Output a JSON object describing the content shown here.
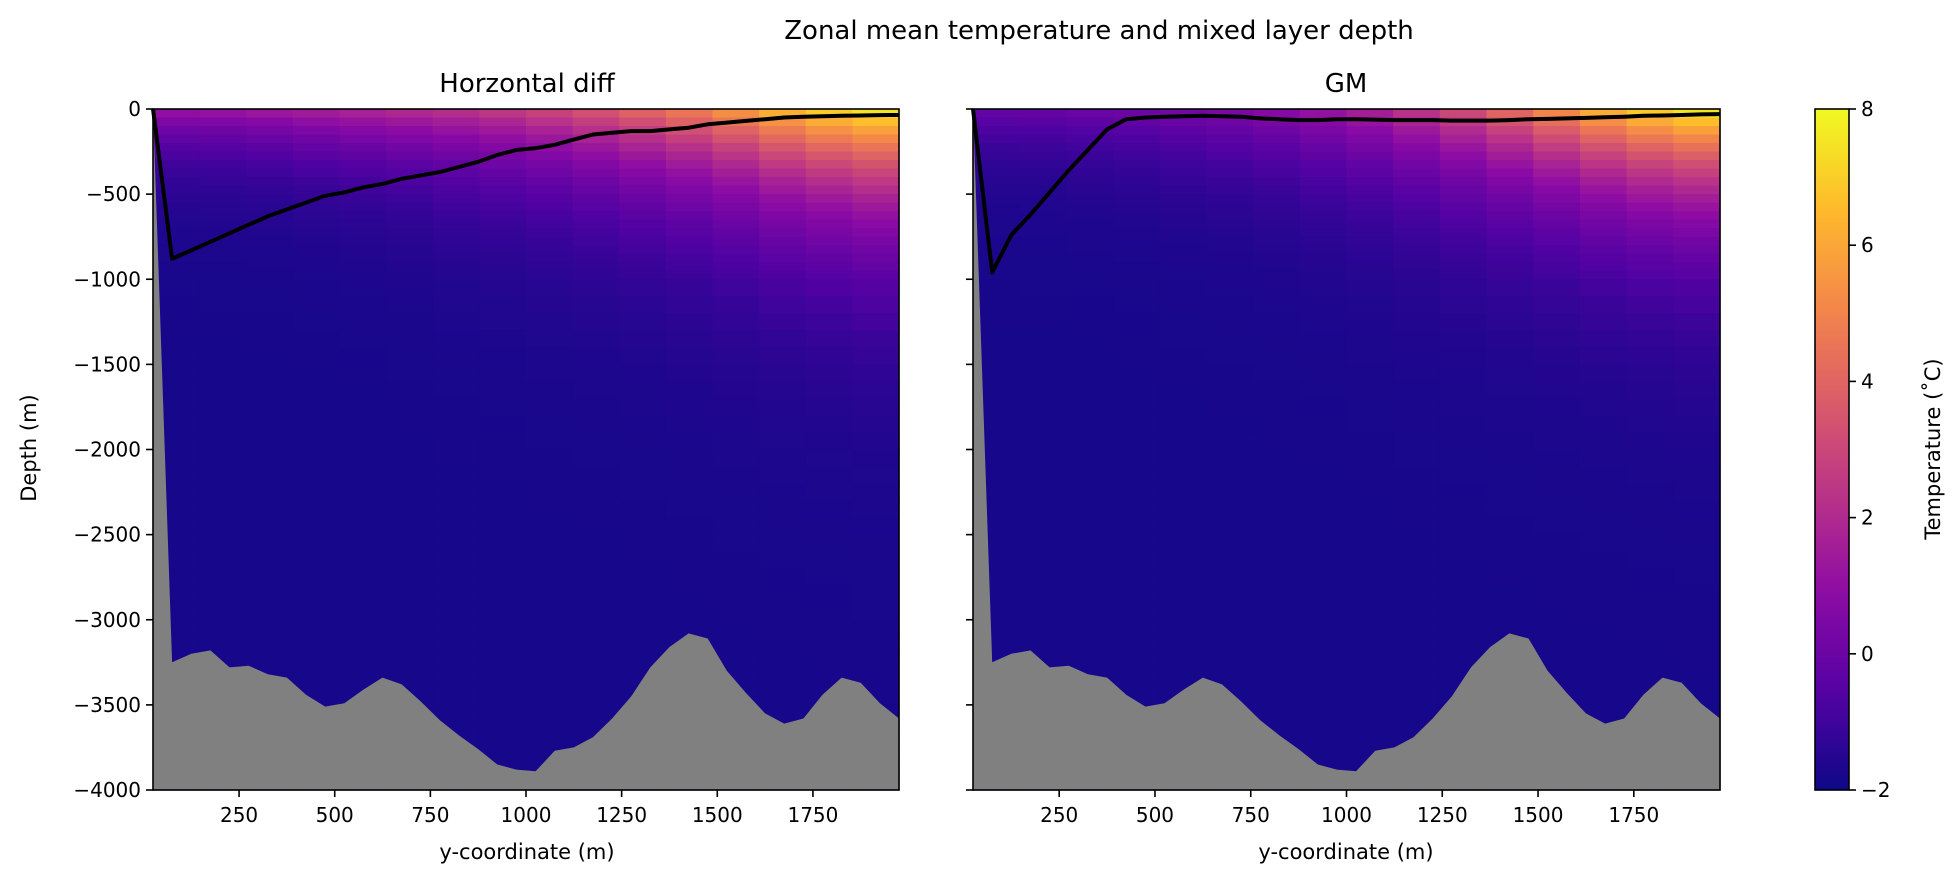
{
  "figure": {
    "suptitle": "Zonal mean temperature and mixed layer depth"
  },
  "chart_data": {
    "type": "heatmap",
    "colormap": "plasma",
    "x_range": [
      25,
      1975
    ],
    "y_range": [
      -4000,
      0
    ],
    "x_ticks": [
      250,
      500,
      750,
      1000,
      1250,
      1500,
      1750
    ],
    "y_ticks": [
      0,
      -500,
      -1000,
      -1500,
      -2000,
      -2500,
      -3000,
      -3500,
      -4000
    ],
    "xlabel": "y-coordinate (m)",
    "ylabel": "Depth (m)",
    "colorbar": {
      "label": "Temperature (˚C)",
      "range": [
        -2,
        8
      ],
      "ticks": [
        -2,
        0,
        2,
        4,
        6,
        8
      ]
    },
    "bathymetry": {
      "fill_color": "#808080",
      "x": [
        25,
        75,
        125,
        175,
        225,
        275,
        325,
        375,
        425,
        475,
        525,
        575,
        625,
        675,
        725,
        775,
        825,
        875,
        925,
        975,
        1025,
        1075,
        1125,
        1175,
        1225,
        1275,
        1325,
        1375,
        1425,
        1475,
        1525,
        1575,
        1625,
        1675,
        1725,
        1775,
        1825,
        1875,
        1925,
        1975
      ],
      "depth": [
        0,
        -3250,
        -3200,
        -3180,
        -3280,
        -3270,
        -3320,
        -3340,
        -3440,
        -3510,
        -3490,
        -3410,
        -3340,
        -3380,
        -3480,
        -3590,
        -3680,
        -3760,
        -3850,
        -3880,
        -3890,
        -3770,
        -3750,
        -3690,
        -3580,
        -3450,
        -3280,
        -3160,
        -3080,
        -3110,
        -3300,
        -3430,
        -3550,
        -3610,
        -3580,
        -3440,
        -3340,
        -3370,
        -3490,
        -3580
      ]
    },
    "panels": [
      {
        "title": "Horzontal diff",
        "ylabel_shown": true,
        "surface_temp": [
          1.3,
          1.4,
          1.6,
          1.8,
          2.0,
          2.2,
          2.4,
          2.7,
          3.1,
          3.6,
          4.2,
          4.9,
          5.7,
          6.6,
          7.4,
          7.9
        ],
        "surface_decay_m": [
          250,
          250,
          260,
          280,
          300,
          320,
          350,
          370,
          390,
          410,
          430,
          450,
          470,
          490,
          500,
          520
        ],
        "series": [
          {
            "name": "",
            "x": [
              25,
              75,
              125,
              175,
              225,
              275,
              325,
              375,
              425,
              475,
              525,
              575,
              625,
              675,
              725,
              775,
              825,
              875,
              925,
              975,
              1025,
              1075,
              1125,
              1175,
              1225,
              1275,
              1325,
              1375,
              1425,
              1475,
              1525,
              1575,
              1625,
              1675,
              1725,
              1775,
              1825,
              1875,
              1925,
              1975
            ],
            "y": [
              0,
              -880,
              -830,
              -780,
              -730,
              -680,
              -630,
              -590,
              -550,
              -510,
              -490,
              -460,
              -440,
              -410,
              -390,
              -370,
              -340,
              -310,
              -270,
              -240,
              -230,
              -210,
              -180,
              -150,
              -140,
              -130,
              -130,
              -120,
              -110,
              -90,
              -80,
              -70,
              -60,
              -50,
              -45,
              -42,
              -40,
              -38,
              -36,
              -35
            ]
          }
        ]
      },
      {
        "title": "GM",
        "ylabel_shown": false,
        "surface_temp": [
          0.0,
          0.0,
          0.1,
          0.2,
          0.4,
          0.6,
          0.9,
          1.3,
          1.8,
          2.5,
          3.3,
          4.3,
          5.4,
          6.5,
          7.4,
          8.0
        ],
        "surface_decay_m": [
          250,
          260,
          280,
          300,
          320,
          340,
          360,
          380,
          400,
          420,
          440,
          450,
          460,
          470,
          480,
          490
        ],
        "series": [
          {
            "name": "",
            "x": [
              25,
              75,
              125,
              175,
              225,
              275,
              325,
              375,
              425,
              475,
              525,
              575,
              625,
              675,
              725,
              775,
              825,
              875,
              925,
              975,
              1025,
              1075,
              1125,
              1175,
              1225,
              1275,
              1325,
              1375,
              1425,
              1475,
              1525,
              1575,
              1625,
              1675,
              1725,
              1775,
              1825,
              1875,
              1925,
              1975
            ],
            "y": [
              0,
              -960,
              -740,
              -620,
              -490,
              -360,
              -240,
              -120,
              -60,
              -50,
              -45,
              -42,
              -40,
              -42,
              -45,
              -55,
              -60,
              -65,
              -65,
              -60,
              -60,
              -62,
              -65,
              -65,
              -65,
              -68,
              -68,
              -68,
              -65,
              -60,
              -58,
              -55,
              -52,
              -48,
              -45,
              -40,
              -38,
              -35,
              -32,
              -30
            ]
          }
        ]
      }
    ]
  }
}
